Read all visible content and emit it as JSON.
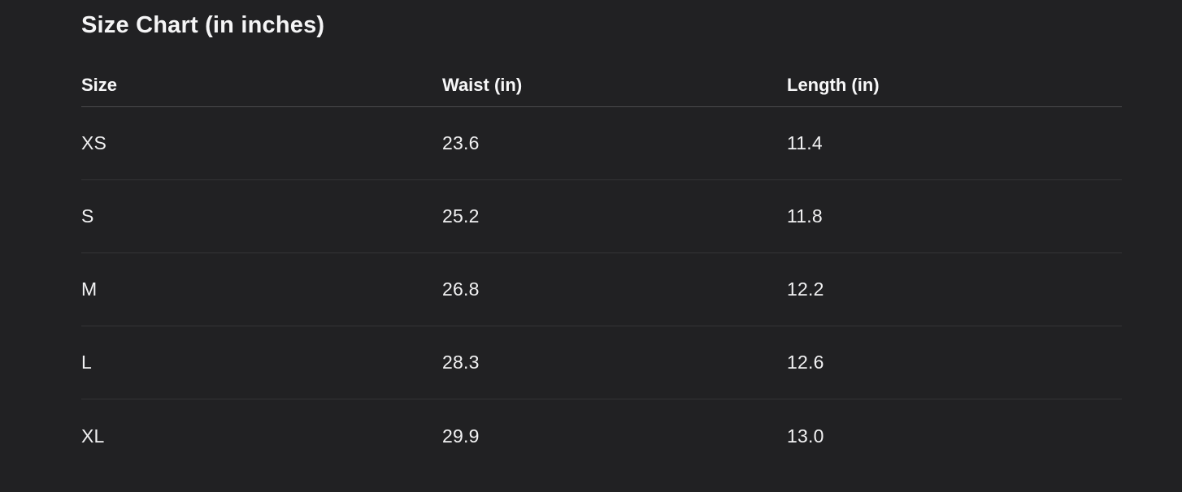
{
  "size_chart": {
    "title": "Size Chart (in inches)",
    "columns": [
      "Size",
      "Waist (in)",
      "Length (in)"
    ],
    "rows": [
      {
        "size": "XS",
        "waist": "23.6",
        "length": "11.4"
      },
      {
        "size": "S",
        "waist": "25.2",
        "length": "11.8"
      },
      {
        "size": "M",
        "waist": "26.8",
        "length": "12.2"
      },
      {
        "size": "L",
        "waist": "28.3",
        "length": "12.6"
      },
      {
        "size": "XL",
        "waist": "29.9",
        "length": "13.0"
      }
    ],
    "colors": {
      "background": "#212123",
      "text": "#f2f2f3",
      "header_divider": "#4b4b4d",
      "row_divider": "#343436"
    }
  }
}
